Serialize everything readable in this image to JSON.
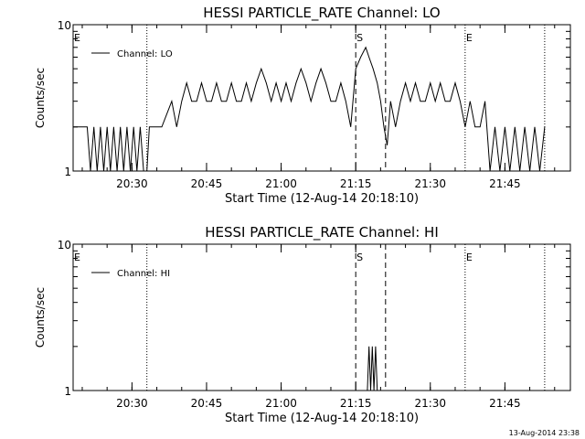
{
  "chart_data": [
    {
      "type": "line",
      "title": "HESSI PARTICLE_RATE Channel: LO",
      "xlabel": "Start Time (12-Aug-14 20:18:10)",
      "ylabel": "Counts/sec",
      "y_scale": "log",
      "ylim": [
        1,
        10
      ],
      "y_ticks": [
        {
          "value": 1,
          "label": "1"
        },
        {
          "value": 10,
          "label": "10"
        }
      ],
      "x_ticks": [
        "20:30",
        "20:45",
        "21:00",
        "21:15",
        "21:30",
        "21:45"
      ],
      "xlim": [
        "20:18:10",
        "21:58:10"
      ],
      "legend": {
        "position": "top-left",
        "entries": [
          "Channel: LO"
        ]
      },
      "markers": [
        {
          "label": "E",
          "time": "20:18:10",
          "style": "dotted"
        },
        {
          "label": "",
          "time": "20:33:00",
          "style": "dotted"
        },
        {
          "label": "S",
          "time": "21:15:00",
          "style": "dashed"
        },
        {
          "label": "",
          "time": "21:21:00",
          "style": "dashed"
        },
        {
          "label": "E",
          "time": "21:37:00",
          "style": "dotted"
        },
        {
          "label": "",
          "time": "21:53:00",
          "style": "dotted"
        }
      ],
      "series": [
        {
          "name": "Channel: LO",
          "x": [
            "20:18:10",
            "20:21:00",
            "20:21:40",
            "20:22:20",
            "20:23:00",
            "20:23:40",
            "20:24:20",
            "20:25:00",
            "20:25:40",
            "20:26:20",
            "20:27:00",
            "20:27:40",
            "20:28:20",
            "20:29:00",
            "20:29:40",
            "20:30:20",
            "20:31:00",
            "20:31:40",
            "20:32:20",
            "20:33:00",
            "20:33:30",
            "20:36:00",
            "20:38:00",
            "20:39:00",
            "20:40:00",
            "20:41:00",
            "20:42:00",
            "20:43:00",
            "20:44:00",
            "20:45:00",
            "20:46:00",
            "20:47:00",
            "20:48:00",
            "20:49:00",
            "20:50:00",
            "20:51:00",
            "20:52:00",
            "20:53:00",
            "20:54:00",
            "20:55:00",
            "20:56:00",
            "20:57:00",
            "20:58:00",
            "20:59:00",
            "21:00:00",
            "21:01:00",
            "21:02:00",
            "21:03:00",
            "21:04:00",
            "21:05:00",
            "21:06:00",
            "21:07:00",
            "21:08:00",
            "21:09:00",
            "21:10:00",
            "21:11:00",
            "21:12:00",
            "21:13:00",
            "21:14:00",
            "21:15:00",
            "21:16:00",
            "21:17:00",
            "21:17:40",
            "21:18:30",
            "21:19:20",
            "21:20:00",
            "21:20:40",
            "21:21:20",
            "21:22:00",
            "21:23:00",
            "21:24:00",
            "21:25:00",
            "21:26:00",
            "21:27:00",
            "21:28:00",
            "21:29:00",
            "21:30:00",
            "21:31:00",
            "21:32:00",
            "21:33:00",
            "21:34:00",
            "21:35:00",
            "21:36:00",
            "21:37:00",
            "21:38:00",
            "21:39:00",
            "21:40:00",
            "21:41:00",
            "21:42:00",
            "21:43:00",
            "21:44:00",
            "21:45:00",
            "21:46:00",
            "21:47:00",
            "21:48:00",
            "21:49:00",
            "21:50:00",
            "21:51:00",
            "21:52:00",
            "21:53:00"
          ],
          "values": [
            2,
            2,
            1,
            2,
            1,
            2,
            1,
            2,
            1,
            2,
            1,
            2,
            1,
            2,
            1,
            2,
            1,
            2,
            1,
            1,
            2,
            2,
            3,
            2,
            3,
            4,
            3,
            3,
            4,
            3,
            3,
            4,
            3,
            3,
            4,
            3,
            3,
            4,
            3,
            4,
            5,
            4,
            3,
            4,
            3,
            4,
            3,
            4,
            5,
            4,
            3,
            4,
            5,
            4,
            3,
            3,
            4,
            3,
            2,
            5,
            6,
            7,
            6,
            5,
            4,
            3,
            2,
            1.5,
            3,
            2,
            3,
            4,
            3,
            4,
            3,
            3,
            4,
            3,
            4,
            3,
            3,
            4,
            3,
            2,
            3,
            2,
            2,
            3,
            1,
            2,
            1,
            2,
            1,
            2,
            1,
            2,
            1,
            2,
            1,
            2
          ]
        }
      ]
    },
    {
      "type": "line",
      "title": "HESSI PARTICLE_RATE Channel: HI",
      "xlabel": "Start Time (12-Aug-14 20:18:10)",
      "ylabel": "Counts/sec",
      "y_scale": "log",
      "ylim": [
        1,
        10
      ],
      "y_ticks": [
        {
          "value": 1,
          "label": "1"
        },
        {
          "value": 10,
          "label": "10"
        }
      ],
      "x_ticks": [
        "20:30",
        "20:45",
        "21:00",
        "21:15",
        "21:30",
        "21:45"
      ],
      "xlim": [
        "20:18:10",
        "21:58:10"
      ],
      "legend": {
        "position": "top-left",
        "entries": [
          "Channel: HI"
        ]
      },
      "markers": [
        {
          "label": "E",
          "time": "20:18:10",
          "style": "dotted"
        },
        {
          "label": "",
          "time": "20:33:00",
          "style": "dotted"
        },
        {
          "label": "S",
          "time": "21:15:00",
          "style": "dashed"
        },
        {
          "label": "",
          "time": "21:21:00",
          "style": "dashed"
        },
        {
          "label": "E",
          "time": "21:37:00",
          "style": "dotted"
        },
        {
          "label": "",
          "time": "21:53:00",
          "style": "dotted"
        }
      ],
      "series": [
        {
          "name": "Channel: HI",
          "x": [
            "21:17:20",
            "21:17:40",
            "21:18:00",
            "21:18:20",
            "21:18:40",
            "21:19:00",
            "21:19:20"
          ],
          "values": [
            1,
            2,
            1,
            2,
            1,
            2,
            1
          ]
        }
      ]
    }
  ],
  "footer": {
    "timestamp": "13-Aug-2014 23:38"
  }
}
